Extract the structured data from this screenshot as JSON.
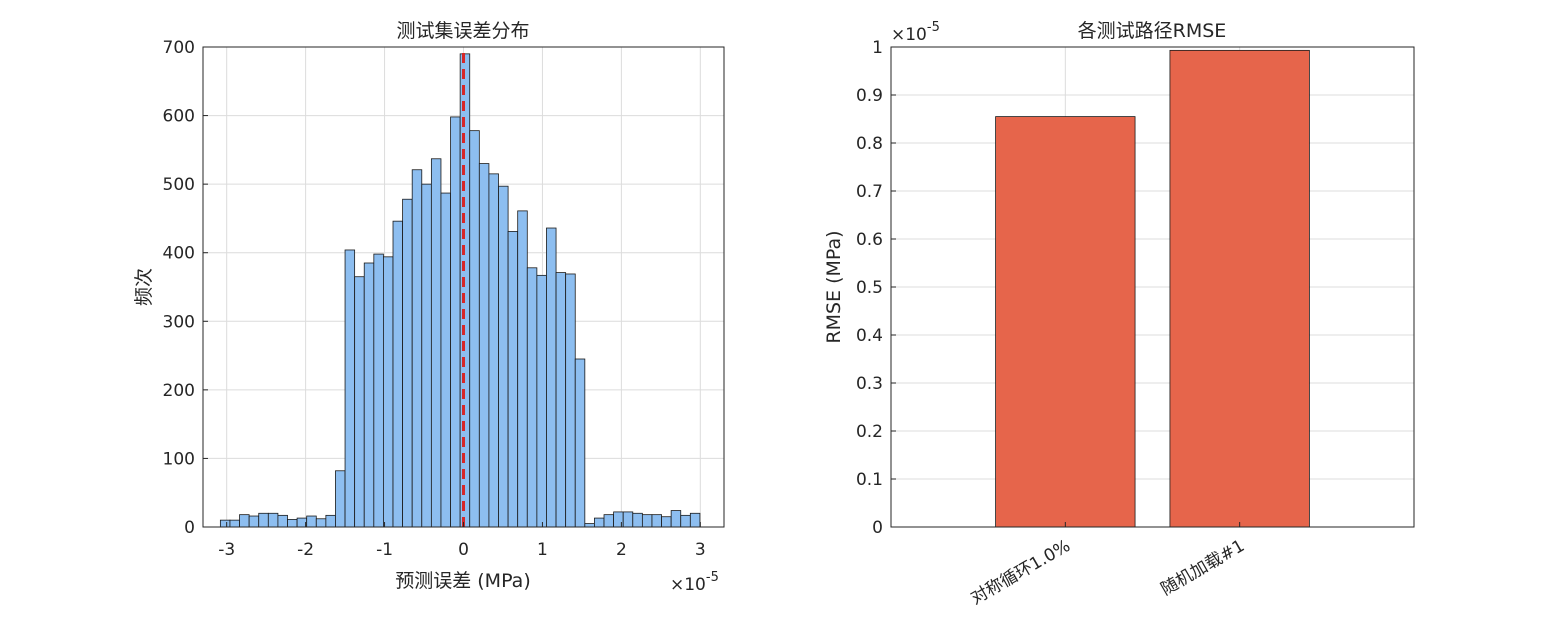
{
  "chart_data": [
    {
      "type": "bar",
      "subtype": "histogram",
      "title": "测试集误差分布",
      "xlabel": "预测误差 (MPa)",
      "ylabel": "频次",
      "x_exponent_label": "×10",
      "x_exponent_power": "-5",
      "xlim": [
        -3.3,
        3.3
      ],
      "ylim": [
        0,
        700
      ],
      "xticks": [
        -3,
        -2,
        -1,
        0,
        1,
        2,
        3
      ],
      "xtick_labels": [
        "-3",
        "-2",
        "-1",
        "0",
        "1",
        "2",
        "3"
      ],
      "yticks": [
        0,
        100,
        200,
        300,
        400,
        500,
        600,
        700
      ],
      "ytick_labels": [
        "0",
        "100",
        "200",
        "300",
        "400",
        "500",
        "600",
        "700"
      ],
      "bin_start": -3.08,
      "bin_width": 0.1215,
      "counts": [
        10,
        10,
        18,
        16,
        20,
        20,
        17,
        11,
        13,
        16,
        12,
        17,
        82,
        404,
        365,
        385,
        398,
        394,
        446,
        478,
        521,
        500,
        537,
        487,
        598,
        690,
        578,
        530,
        515,
        497,
        431,
        461,
        378,
        367,
        436,
        371,
        369,
        245,
        5,
        13,
        18,
        22,
        22,
        20,
        18,
        18,
        15,
        24,
        17,
        20
      ],
      "reference_line_x": 0,
      "bar_color": "#8DBEF0",
      "edge_color": "#1A1A1A",
      "reference_line_color": "#D62728",
      "grid": true
    },
    {
      "type": "bar",
      "title": "各测试路径RMSE",
      "xlabel": "",
      "ylabel": "RMSE (MPa)",
      "y_exponent_label": "×10",
      "y_exponent_power": "-5",
      "categories": [
        "对称循环1.0%",
        "随机加载#1"
      ],
      "values": [
        0.855,
        0.993
      ],
      "ylim": [
        0,
        1
      ],
      "yticks": [
        0,
        0.1,
        0.2,
        0.3,
        0.4,
        0.5,
        0.6,
        0.7,
        0.8,
        0.9,
        1
      ],
      "ytick_labels": [
        "0",
        "0.1",
        "0.2",
        "0.3",
        "0.4",
        "0.5",
        "0.6",
        "0.7",
        "0.8",
        "0.9",
        "1"
      ],
      "bar_color": "#E6654B",
      "edge_color": "#1A1A1A",
      "grid": true
    }
  ]
}
